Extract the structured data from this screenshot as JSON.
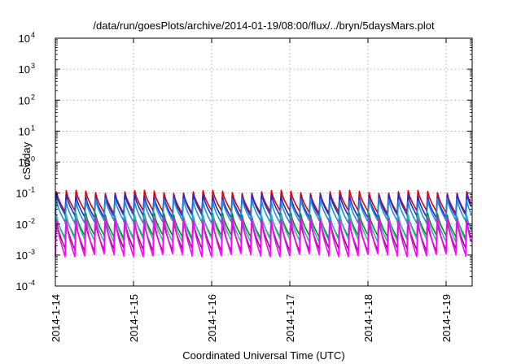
{
  "chart_data": {
    "type": "line",
    "title": "/data/run/goesPlots/archive/2014-01-19/08:00/flux/../bryn/5daysMars.plot",
    "xlabel": "Coordinated Universal Time (UTC)",
    "ylabel": "cSv/day",
    "yscale": "log",
    "ylim": [
      0.0001,
      10000
    ],
    "ytick_labels": [
      {
        "base": "10",
        "exp": "-4"
      },
      {
        "base": "10",
        "exp": "-3"
      },
      {
        "base": "10",
        "exp": "-2"
      },
      {
        "base": "10",
        "exp": "-1"
      },
      {
        "base": "10",
        "exp": "0"
      },
      {
        "base": "10",
        "exp": "1"
      },
      {
        "base": "10",
        "exp": "2"
      },
      {
        "base": "10",
        "exp": "3"
      },
      {
        "base": "10",
        "exp": "4"
      }
    ],
    "xlim": [
      "2014-01-14 00:00",
      "2014-01-19 08:00"
    ],
    "xtick_labels": [
      "2014-1-14",
      "2014-1-15",
      "2014-1-16",
      "2014-1-17",
      "2014-1-18",
      "2014-1-19"
    ],
    "grid": true,
    "legend": "none",
    "pattern": "sawtooth, roughly 8 cycles per day",
    "series": [
      {
        "color": "#e00000",
        "peak": 0.11,
        "trough": 0.025
      },
      {
        "color": "#1a2bd8",
        "peak": 0.085,
        "trough": 0.018
      },
      {
        "color": "#1e8fe0",
        "peak": 0.06,
        "trough": 0.012
      },
      {
        "color": "#0a8a0a",
        "peak": 0.02,
        "trough": 0.004
      },
      {
        "color": "#2ab8b0",
        "peak": 0.018,
        "trough": 0.003
      },
      {
        "color": "#8a1a6a",
        "peak": 0.012,
        "trough": 0.0015
      },
      {
        "color": "#ff00ff",
        "peak": 0.015,
        "trough": 0.001
      }
    ]
  }
}
